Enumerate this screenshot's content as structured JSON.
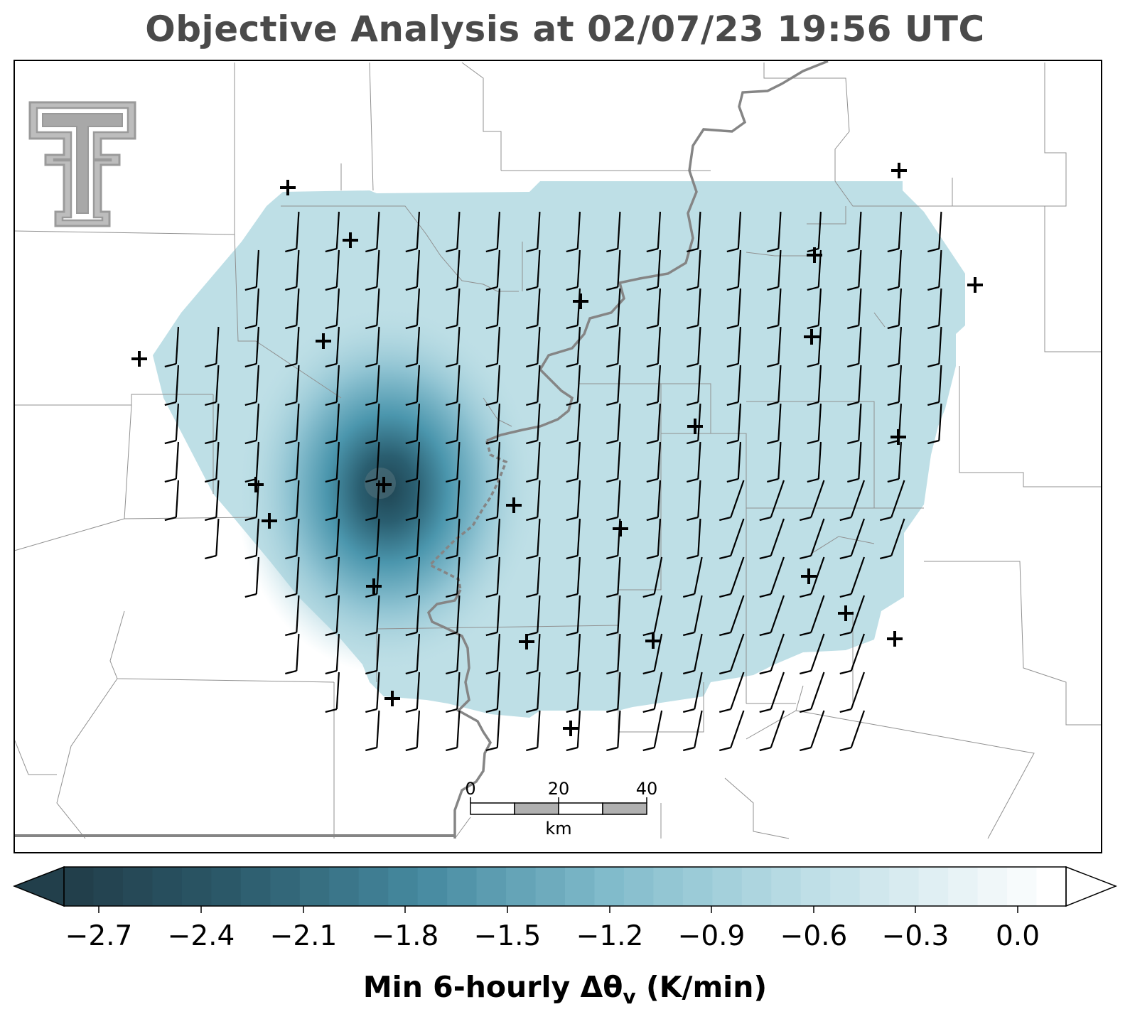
{
  "title": "Objective Analysis at 02/07/23 19:56 UTC",
  "map": {
    "field": "Min 6-hourly Δθv",
    "field_colors": {
      "min": "#1f4452",
      "mid": "#4b96ad",
      "background": "#bedfe6",
      "max": "#ffffff"
    },
    "logo": "texas-tech-double-t-logo",
    "station_marker": "plus-sign",
    "wind_symbol": "wind-barb",
    "scale_bar": {
      "ticks": [
        "0",
        "20",
        "40"
      ],
      "unit": "km"
    }
  },
  "colorbar": {
    "ticks": [
      "−2.7",
      "−2.4",
      "−2.1",
      "−1.8",
      "−1.5",
      "−1.2",
      "−0.9",
      "−0.6",
      "−0.3",
      "0.0"
    ],
    "label_main": "Min 6-hourly Δθ",
    "label_sub": "v",
    "label_unit": " (K/min)",
    "extend": "both"
  }
}
